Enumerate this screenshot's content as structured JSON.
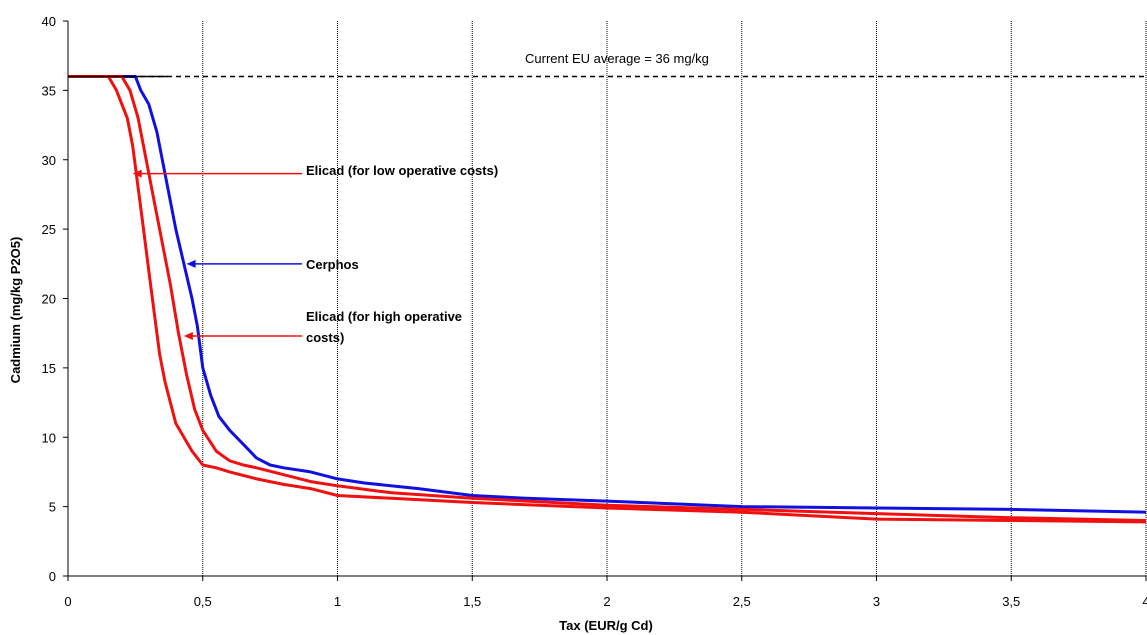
{
  "chart_data": {
    "type": "line",
    "xlabel": "Tax (EUR/g Cd)",
    "ylabel": "Cadmium (mg/kg P2O5)",
    "xlim": [
      0,
      4
    ],
    "ylim": [
      0,
      40
    ],
    "x_ticks": [
      "0",
      "0,5",
      "1",
      "1,5",
      "2",
      "2,5",
      "3",
      "3,5",
      "4"
    ],
    "y_ticks": [
      "0",
      "5",
      "10",
      "15",
      "20",
      "25",
      "30",
      "35",
      "40"
    ],
    "grid": "vertical",
    "colors": {
      "cerphos": "#1010e0",
      "elicad": "#f01010",
      "reference": "#000000"
    },
    "reference_line": {
      "y": 36,
      "label": "Current EU average = 36 mg/kg",
      "style": "dashed"
    },
    "series": [
      {
        "name": "Cerphos",
        "color": "#1010e0",
        "x": [
          0,
          0.25,
          0.27,
          0.3,
          0.33,
          0.36,
          0.38,
          0.4,
          0.43,
          0.46,
          0.48,
          0.5,
          0.53,
          0.56,
          0.6,
          0.65,
          0.7,
          0.75,
          0.8,
          0.9,
          1.0,
          1.1,
          1.3,
          1.5,
          1.7,
          2.0,
          2.5,
          3.0,
          3.5,
          4.0
        ],
        "y": [
          36,
          36,
          35,
          34,
          32,
          29,
          27,
          25,
          22.5,
          20,
          18,
          15,
          13,
          11.5,
          10.5,
          9.5,
          8.5,
          8,
          7.8,
          7.5,
          7,
          6.7,
          6.3,
          5.8,
          5.6,
          5.4,
          5.0,
          4.9,
          4.8,
          4.6
        ]
      },
      {
        "name": "Elicad (for low operative costs)",
        "color": "#f01010",
        "x": [
          0,
          0.15,
          0.18,
          0.2,
          0.22,
          0.24,
          0.26,
          0.28,
          0.3,
          0.32,
          0.34,
          0.36,
          0.38,
          0.4,
          0.43,
          0.46,
          0.5,
          0.55,
          0.6,
          0.7,
          0.8,
          0.9,
          1.0,
          1.2,
          1.5,
          2.0,
          2.5,
          3.0,
          3.5,
          4.0
        ],
        "y": [
          36,
          36,
          35,
          34,
          33,
          31,
          28,
          25,
          22,
          19,
          16,
          14,
          12.5,
          11,
          10,
          9,
          8,
          7.8,
          7.5,
          7,
          6.6,
          6.3,
          5.8,
          5.6,
          5.3,
          4.9,
          4.6,
          4.1,
          4.0,
          3.9
        ]
      },
      {
        "name": "Elicad (for high operative costs)",
        "color": "#f01010",
        "x": [
          0,
          0.2,
          0.23,
          0.26,
          0.29,
          0.32,
          0.35,
          0.38,
          0.41,
          0.44,
          0.47,
          0.5,
          0.55,
          0.6,
          0.65,
          0.7,
          0.8,
          0.9,
          1.0,
          1.2,
          1.5,
          2.0,
          2.5,
          3.0,
          3.5,
          4.0
        ],
        "y": [
          36,
          36,
          35,
          33,
          30,
          27,
          24,
          21,
          17.5,
          14.5,
          12,
          10.5,
          9,
          8.3,
          8,
          7.8,
          7.3,
          6.8,
          6.5,
          6,
          5.6,
          5.1,
          4.8,
          4.5,
          4.2,
          4.0
        ]
      }
    ],
    "annotations": [
      {
        "text": "Elicad (for low operative costs)",
        "target_x": 0.24,
        "target_y": 29
      },
      {
        "text": "Cerphos",
        "target_x": 0.44,
        "target_y": 22.5
      },
      {
        "text_lines": [
          "Elicad (for high operative",
          "costs)"
        ],
        "target_x": 0.43,
        "target_y": 17.3
      }
    ]
  }
}
